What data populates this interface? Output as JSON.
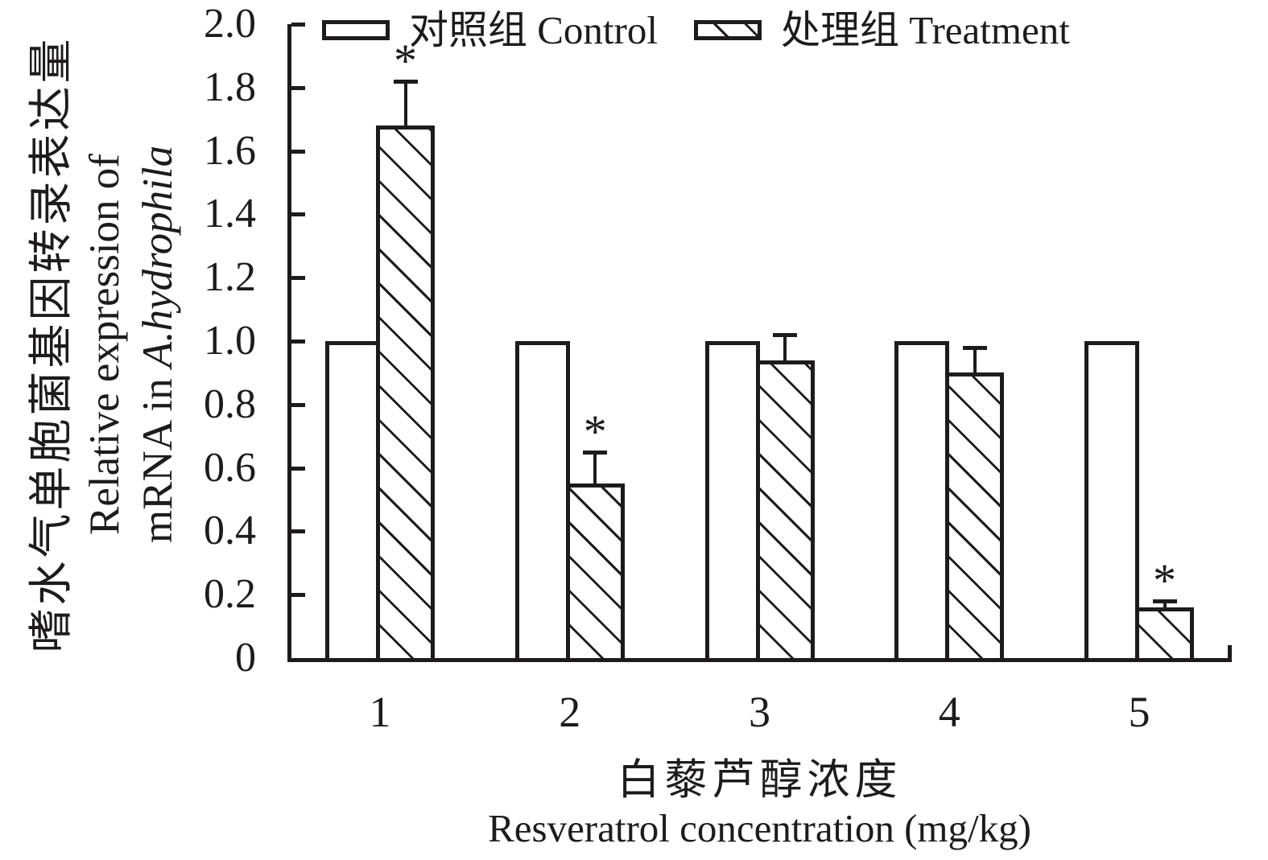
{
  "chart_data": {
    "type": "bar",
    "categories": [
      "1",
      "2",
      "3",
      "4",
      "5"
    ],
    "series": [
      {
        "name": "对照组 Control",
        "pattern": "solid",
        "values": [
          1.0,
          1.0,
          1.0,
          1.0,
          1.0
        ],
        "errors": [
          0,
          0,
          0,
          0,
          0
        ],
        "significant": [
          false,
          false,
          false,
          false,
          false
        ]
      },
      {
        "name": "处理组 Treatment",
        "pattern": "hatch",
        "values": [
          1.68,
          0.55,
          0.94,
          0.9,
          0.16
        ],
        "errors": [
          0.14,
          0.1,
          0.08,
          0.08,
          0.02
        ],
        "significant": [
          true,
          true,
          false,
          false,
          true
        ]
      }
    ],
    "ylim": [
      0,
      2.0
    ],
    "y_ticks": [
      "2.0",
      "1.8",
      "1.6",
      "1.4",
      "1.2",
      "1.0",
      "0.8",
      "0.6",
      "0.4",
      "0.2",
      "0"
    ],
    "ylabel_zh": "嗜水气单胞菌基因转录表达量",
    "ylabel_en_line1": "Relative expression of",
    "ylabel_en_line2_plain": "mRNA in ",
    "ylabel_en_line2_italic": "A.hydrophila",
    "xlabel_zh": "白藜芦醇浓度",
    "xlabel_en": "Resveratrol concentration (mg/kg)",
    "significance_marker": "*",
    "legend_position": "top",
    "grid": false,
    "bar_fill": "#ffffff",
    "ink_color": "#1d1b1c"
  }
}
